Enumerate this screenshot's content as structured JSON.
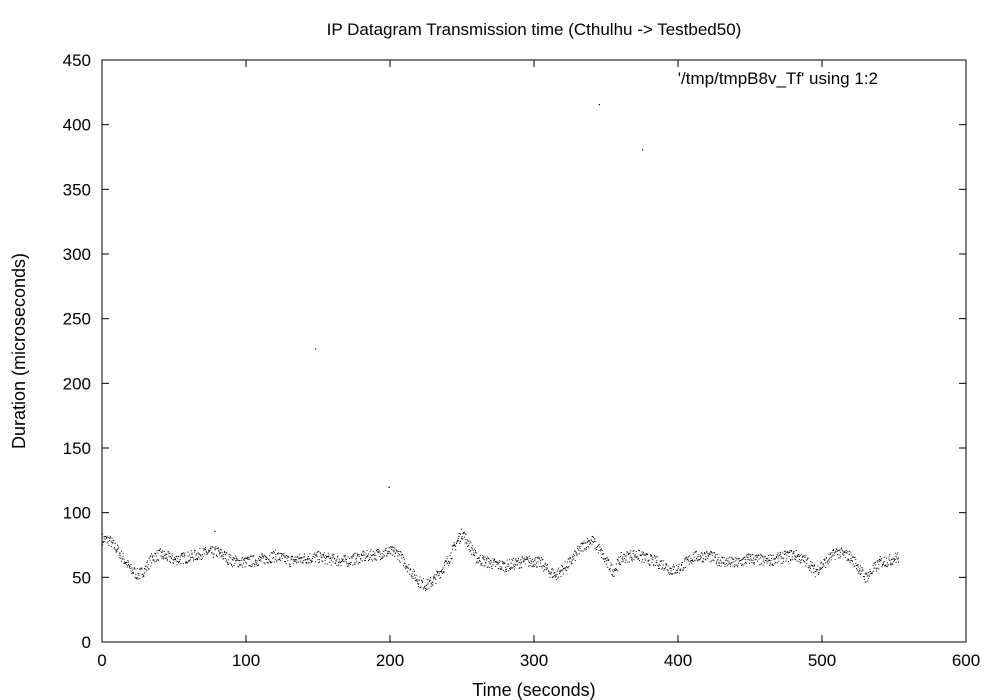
{
  "chart_data": {
    "type": "scatter",
    "title": "IP Datagram Transmission time (Cthulhu -> Testbed50)",
    "xlabel": "Time (seconds)",
    "ylabel": "Duration (microseconds)",
    "xlim": [
      0,
      600
    ],
    "ylim": [
      0,
      450
    ],
    "xticks": [
      "0",
      "100",
      "200",
      "300",
      "400",
      "500",
      "600"
    ],
    "yticks": [
      "0",
      "50",
      "100",
      "150",
      "200",
      "250",
      "300",
      "350",
      "400",
      "450"
    ],
    "grid": false,
    "legend_position": "top-right",
    "series": [
      {
        "name": "'/tmp/tmpB8v_Tf' using 1:2",
        "color": "#000000",
        "marker": "dot",
        "trend": [
          [
            0,
            80
          ],
          [
            5,
            79
          ],
          [
            10,
            72
          ],
          [
            15,
            64
          ],
          [
            20,
            56
          ],
          [
            25,
            52
          ],
          [
            30,
            57
          ],
          [
            35,
            66
          ],
          [
            40,
            68
          ],
          [
            50,
            64
          ],
          [
            60,
            66
          ],
          [
            70,
            69
          ],
          [
            80,
            70
          ],
          [
            90,
            63
          ],
          [
            100,
            62
          ],
          [
            110,
            64
          ],
          [
            120,
            67
          ],
          [
            130,
            63
          ],
          [
            140,
            65
          ],
          [
            150,
            66
          ],
          [
            160,
            64
          ],
          [
            170,
            63
          ],
          [
            180,
            66
          ],
          [
            190,
            68
          ],
          [
            200,
            70
          ],
          [
            205,
            69
          ],
          [
            210,
            62
          ],
          [
            215,
            54
          ],
          [
            220,
            47
          ],
          [
            225,
            44
          ],
          [
            230,
            48
          ],
          [
            235,
            55
          ],
          [
            240,
            63
          ],
          [
            245,
            75
          ],
          [
            250,
            85
          ],
          [
            255,
            75
          ],
          [
            260,
            65
          ],
          [
            270,
            61
          ],
          [
            280,
            59
          ],
          [
            290,
            62
          ],
          [
            300,
            63
          ],
          [
            305,
            61
          ],
          [
            310,
            55
          ],
          [
            315,
            52
          ],
          [
            320,
            57
          ],
          [
            325,
            62
          ],
          [
            330,
            70
          ],
          [
            335,
            76
          ],
          [
            340,
            79
          ],
          [
            345,
            72
          ],
          [
            350,
            62
          ],
          [
            355,
            55
          ],
          [
            360,
            65
          ],
          [
            370,
            68
          ],
          [
            380,
            64
          ],
          [
            390,
            60
          ],
          [
            395,
            56
          ],
          [
            400,
            57
          ],
          [
            410,
            66
          ],
          [
            420,
            67
          ],
          [
            430,
            63
          ],
          [
            440,
            61
          ],
          [
            450,
            65
          ],
          [
            460,
            63
          ],
          [
            470,
            65
          ],
          [
            480,
            68
          ],
          [
            490,
            62
          ],
          [
            495,
            55
          ],
          [
            500,
            60
          ],
          [
            510,
            70
          ],
          [
            520,
            66
          ],
          [
            525,
            58
          ],
          [
            530,
            50
          ],
          [
            535,
            56
          ],
          [
            540,
            62
          ],
          [
            545,
            63
          ],
          [
            550,
            65
          ],
          [
            553,
            66
          ]
        ],
        "outliers": [
          [
            78,
            86
          ],
          [
            148,
            227
          ],
          [
            199,
            120
          ],
          [
            345,
            416
          ],
          [
            375,
            381
          ]
        ]
      }
    ]
  }
}
